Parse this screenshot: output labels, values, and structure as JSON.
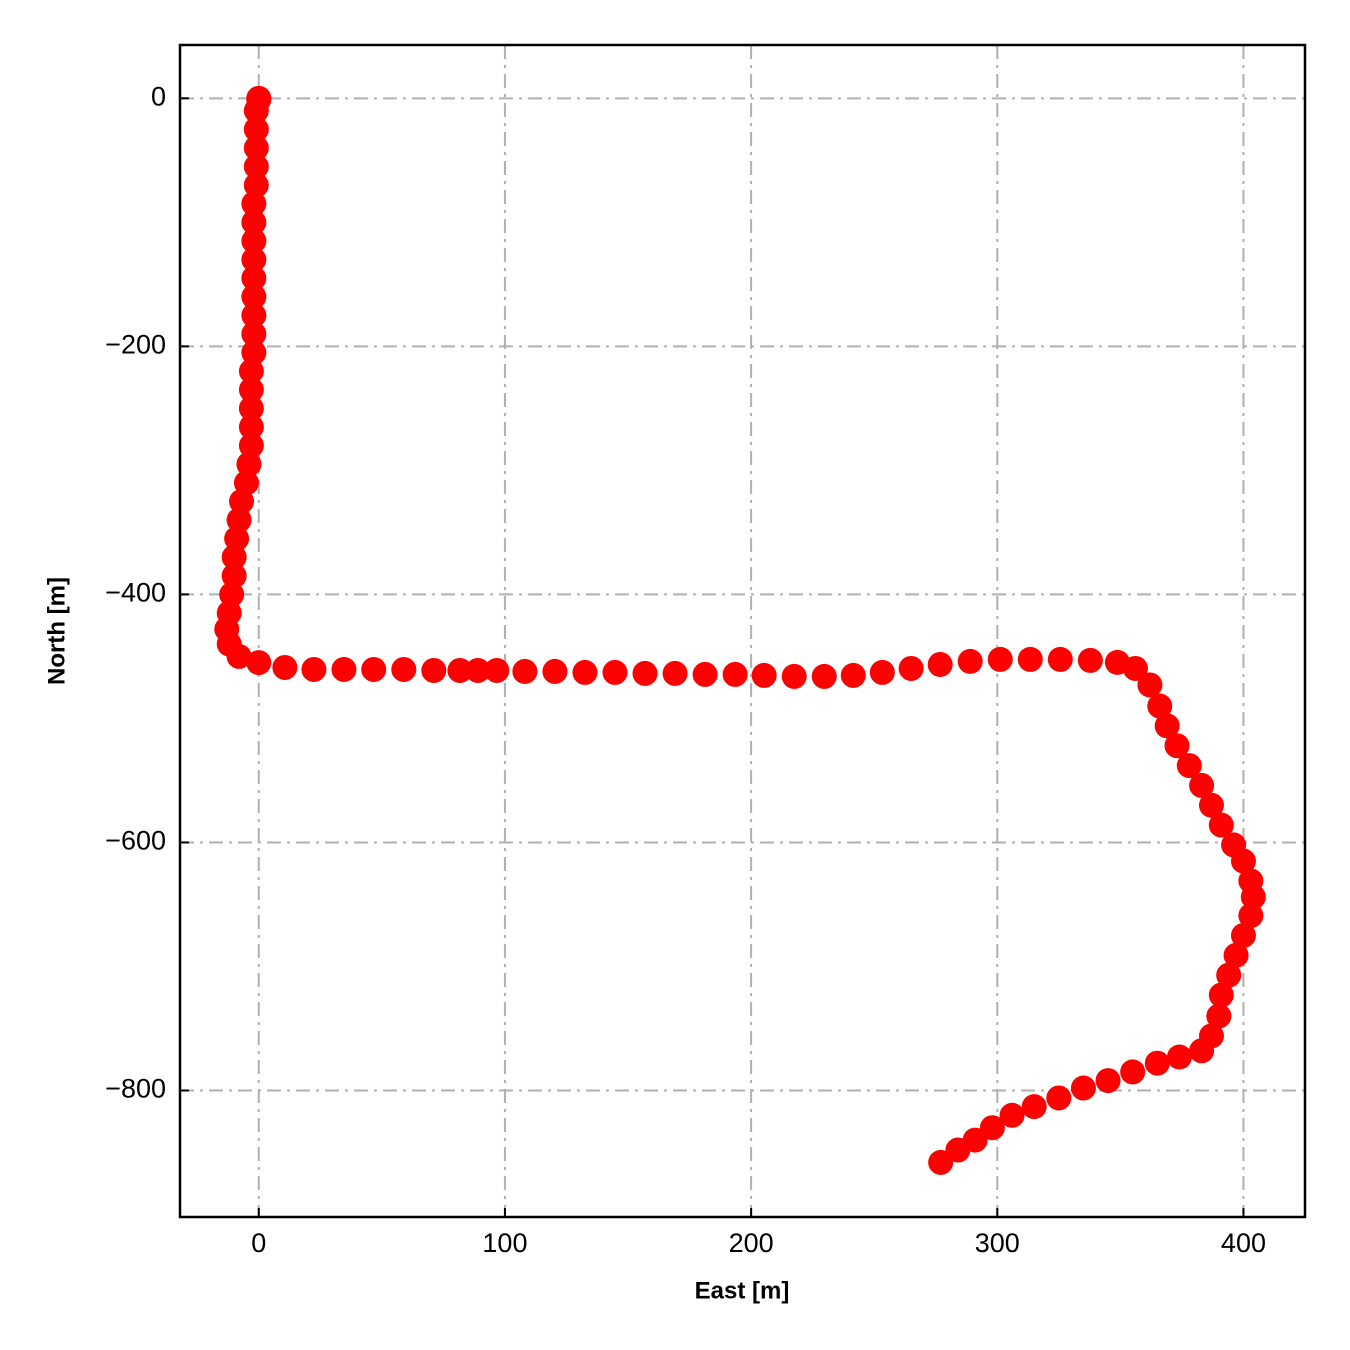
{
  "chart_data": {
    "type": "scatter",
    "x_label": "East [m]",
    "y_label": "North [m]",
    "xlim": [
      -32,
      425
    ],
    "ylim": [
      -902,
      43
    ],
    "xticks": [
      0,
      100,
      200,
      300,
      400
    ],
    "yticks": [
      0,
      {
        "value": -200,
        "label": "−200"
      },
      {
        "value": -400,
        "label": "−400"
      },
      {
        "value": -600,
        "label": "−600"
      },
      {
        "value": -800,
        "label": "−800"
      }
    ],
    "grid": true,
    "color": "#ff0000",
    "x": [
      0,
      0,
      -1,
      -1,
      -1,
      -1,
      -1,
      -2,
      -2,
      -2,
      -2,
      -2,
      -2,
      -2,
      -2,
      -2,
      -3,
      -3,
      -3,
      -3,
      -3,
      -4,
      -5,
      -7,
      -8,
      -9,
      -10,
      -10,
      -11,
      -12,
      -13,
      -12,
      -8,
      0,
      10.6,
      22.4,
      34.6,
      46.7,
      58.9,
      71.1,
      81.7,
      89,
      96.7,
      108.1,
      120.3,
      132.5,
      144.7,
      156.9,
      169.1,
      181.3,
      193.5,
      205.3,
      217.5,
      229.7,
      241.5,
      253.3,
      265,
      276.8,
      289,
      301.2,
      313.4,
      325.6,
      337.8,
      348.8,
      356.1,
      362,
      366,
      369,
      373,
      378,
      383,
      387,
      391,
      396,
      400,
      403,
      404,
      403,
      400,
      397,
      394,
      391,
      390,
      387,
      383,
      374,
      365,
      355,
      345,
      335,
      325,
      315,
      306,
      298,
      291,
      284,
      277
    ],
    "values": [
      0,
      -1,
      -10,
      -25,
      -40,
      -55,
      -70,
      -85,
      -100,
      -115,
      -130,
      -145,
      -160,
      -175,
      -190,
      -205,
      -220,
      -235,
      -250,
      -265,
      -280,
      -295,
      -310,
      -325,
      -340,
      -355,
      -370,
      -385,
      -400,
      -415,
      -428,
      -440,
      -450,
      -455,
      -458.9,
      -460.5,
      -460.5,
      -460.5,
      -460.5,
      -461.3,
      -461.3,
      -461.3,
      -461.3,
      -462.1,
      -462.1,
      -462.9,
      -462.9,
      -463.7,
      -463.7,
      -464.5,
      -464.5,
      -465.3,
      -466.1,
      -466.1,
      -465.3,
      -462.9,
      -459.7,
      -456.5,
      -454,
      -452.4,
      -452.4,
      -452.4,
      -453.2,
      -454.8,
      -459.7,
      -473,
      -490,
      -506,
      -522,
      -538,
      -554,
      -570,
      -586,
      -602,
      -615,
      -631,
      -644,
      -659,
      -675,
      -691,
      -707,
      -723,
      -740,
      -756,
      -768,
      -773,
      -778,
      -785,
      -792,
      -798,
      -806,
      -813,
      -820,
      -830,
      -840,
      -848,
      -858
    ]
  }
}
